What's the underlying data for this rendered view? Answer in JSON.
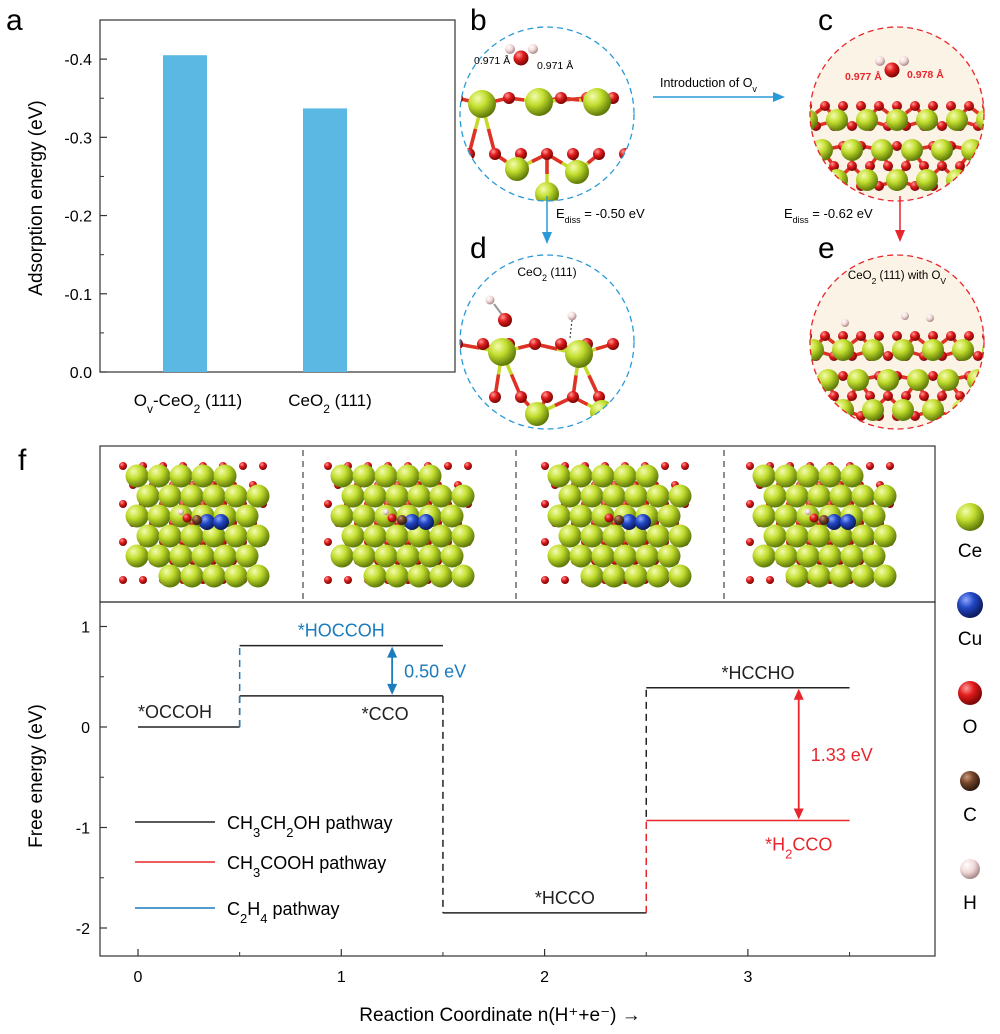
{
  "panels": {
    "a": "a",
    "b": "b",
    "c": "c",
    "d": "d",
    "e": "e",
    "f": "f"
  },
  "chart_data": [
    {
      "type": "bar",
      "panel": "a",
      "categories": [
        "Ov-CeO2 (111)",
        "CeO2 (111)"
      ],
      "values": [
        -0.405,
        -0.337
      ],
      "ylabel": "Adsorption energy (eV)",
      "ylim": [
        0.0,
        -0.45
      ],
      "yticks": [
        0.0,
        -0.1,
        -0.2,
        -0.3,
        -0.4
      ],
      "ytick_labels": [
        "0.0",
        "-0.1",
        "-0.2",
        "-0.3",
        "-0.4"
      ],
      "color": "#5ab8e3"
    },
    {
      "type": "line",
      "panel": "f",
      "xlabel": "Reaction Coordinate n(H⁺+e⁻) →",
      "ylabel": "Free energy (eV)",
      "xlim": [
        -0.15,
        3.75
      ],
      "ylim": [
        -2.25,
        1.2
      ],
      "xticks": [
        0,
        1,
        2,
        3
      ],
      "yticks": [
        -2,
        -1,
        0,
        1
      ],
      "levels": [
        {
          "label": "*OCCOH",
          "x": 0,
          "y": 0.0,
          "color": "#222222",
          "label_color": "#222222"
        },
        {
          "label": "*CCO",
          "x": 1,
          "y": 0.31,
          "color": "#222222",
          "label_color": "#222222"
        },
        {
          "label": "*HOCCOH",
          "x": 1,
          "y": 0.81,
          "color": "#222222",
          "label_color": "#1a7bbd"
        },
        {
          "label": "*HCCO",
          "x": 2,
          "y": -1.85,
          "color": "#222222",
          "label_color": "#222222"
        },
        {
          "label": "*HCCHO",
          "x": 3,
          "y": 0.39,
          "color": "#222222",
          "label_color": "#222222"
        },
        {
          "label": "*H2CCO",
          "x": 3,
          "y": -0.93,
          "color": "#e8262b",
          "label_color": "#e8262b"
        }
      ],
      "series": [
        {
          "name": "CH3CH2OH pathway",
          "color": "#222222",
          "steps": [
            0.0,
            0.31,
            -1.85,
            0.39
          ]
        },
        {
          "name": "CH3COOH pathway",
          "color": "#e8262b",
          "steps": [
            -1.85,
            -0.93
          ]
        },
        {
          "name": "C2H4 pathway",
          "color": "#1a7bbd",
          "steps": [
            0.0,
            0.81
          ]
        }
      ],
      "annotations": [
        {
          "text": "0.50 eV",
          "color": "#1a7bbd",
          "from": 0.81,
          "to": 0.31,
          "x": 1.25
        },
        {
          "text": "1.33 eV",
          "color": "#e8262b",
          "from": 0.39,
          "to": -0.93,
          "x": 3.25
        }
      ]
    }
  ],
  "structures": {
    "b": {
      "bond_left": "0.971 Å",
      "bond_right": "0.971 Å"
    },
    "c": {
      "bond_left": "0.977 Å",
      "bond_right": "0.978 Å"
    },
    "d": {
      "title": "CeO2 (111)"
    },
    "e": {
      "title": "CeO2 (111) with Ov"
    },
    "arrow_bc": "Introduction of Ov",
    "arrow_bd": "Ediss = -0.50 eV",
    "arrow_ce": "Ediss = -0.62 eV"
  },
  "legend_atoms": [
    "Ce",
    "Cu",
    "O",
    "C",
    "H"
  ],
  "colors": {
    "ce": "#b8d62a",
    "cu": "#2146b5",
    "o": "#e01f1f",
    "c": "#6b3f22",
    "h": "#f2d9d9",
    "black_path": "#222222",
    "red_path": "#e8262b",
    "blue_path": "#1a7bbd",
    "bar": "#5ab8e3"
  }
}
